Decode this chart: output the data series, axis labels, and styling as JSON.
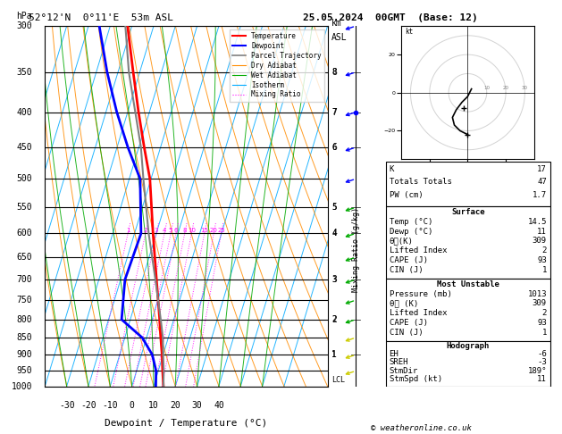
{
  "title_left": "52°12'N  0°11'E  53m ASL",
  "title_right": "25.05.2024  00GMT  (Base: 12)",
  "xlabel": "Dewpoint / Temperature (°C)",
  "pressure_levels": [
    300,
    350,
    400,
    450,
    500,
    550,
    600,
    650,
    700,
    750,
    800,
    850,
    900,
    950,
    1000
  ],
  "temp_profile": {
    "pressure": [
      1000,
      950,
      900,
      850,
      800,
      700,
      600,
      500,
      450,
      400,
      350,
      300
    ],
    "temp": [
      14.5,
      12.0,
      9.5,
      6.5,
      3.5,
      -3.5,
      -11.5,
      -20.5,
      -27.5,
      -35.0,
      -43.0,
      -52.0
    ]
  },
  "dewp_profile": {
    "pressure": [
      1000,
      950,
      900,
      850,
      800,
      700,
      600,
      500,
      450,
      400,
      350,
      300
    ],
    "dewp": [
      11.0,
      9.0,
      5.0,
      -2.0,
      -14.0,
      -18.0,
      -17.0,
      -25.0,
      -35.0,
      -45.0,
      -55.0,
      -65.0
    ]
  },
  "parcel_profile": {
    "pressure": [
      1000,
      950,
      900,
      850,
      800,
      700,
      600,
      500,
      450,
      400,
      350,
      300
    ],
    "temp": [
      14.5,
      12.5,
      10.0,
      7.5,
      4.0,
      -4.0,
      -13.5,
      -23.5,
      -29.0,
      -36.5,
      -45.0,
      -53.0
    ]
  },
  "sounding_data": {
    "K": 17,
    "Totals_Totals": 47,
    "PW_cm": 1.7,
    "Surface_Temp": 14.5,
    "Surface_Dewp": 11,
    "theta_e_K": 309,
    "Lifted_Index": 2,
    "CAPE_J": 93,
    "CIN_J": 1,
    "MU_Pressure_mb": 1013,
    "MU_theta_e_K": 309,
    "MU_Lifted_Index": 2,
    "MU_CAPE_J": 93,
    "MU_CIN_J": 1,
    "EH": -6,
    "SREH": -3,
    "StmDir": 189,
    "StmSpd_kt": 11
  },
  "km_ticks": [
    1,
    2,
    3,
    4,
    5,
    6,
    7,
    8
  ],
  "mixing_ratio_lines": [
    1,
    2,
    3,
    4,
    5,
    6,
    8,
    10,
    15,
    20,
    25
  ],
  "lcl_pressure": 980,
  "isotherm_color": "#00aaff",
  "dry_adiabat_color": "#ff8c00",
  "wet_adiabat_color": "#00aa00",
  "mixing_ratio_color": "#ff00ff",
  "temp_color": "#ff0000",
  "dewp_color": "#0000ff",
  "parcel_color": "#808080"
}
